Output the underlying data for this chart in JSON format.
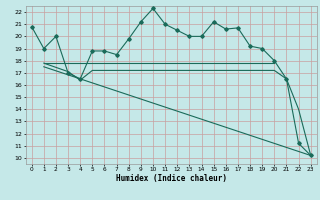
{
  "xlabel": "Humidex (Indice chaleur)",
  "bg_color": "#c5e8e8",
  "grid_color": "#c8a0a0",
  "line_color": "#1a6b5a",
  "xlim": [
    -0.5,
    23.5
  ],
  "ylim": [
    9.5,
    22.5
  ],
  "yticks": [
    10,
    11,
    12,
    13,
    14,
    15,
    16,
    17,
    18,
    19,
    20,
    21,
    22
  ],
  "xticks": [
    0,
    1,
    2,
    3,
    4,
    5,
    6,
    7,
    8,
    9,
    10,
    11,
    12,
    13,
    14,
    15,
    16,
    17,
    18,
    19,
    20,
    21,
    22,
    23
  ],
  "line1_x": [
    0,
    1,
    2,
    3,
    4,
    5,
    6,
    7,
    8,
    9,
    10,
    11,
    12,
    13,
    14,
    15,
    16,
    17,
    18,
    19,
    20,
    21,
    22,
    23
  ],
  "line1_y": [
    20.8,
    19.0,
    20.0,
    17.0,
    16.5,
    18.8,
    18.8,
    18.5,
    19.8,
    21.2,
    22.3,
    21.0,
    20.5,
    20.0,
    20.0,
    21.2,
    20.6,
    20.7,
    19.2,
    19.0,
    18.0,
    16.5,
    11.2,
    10.2
  ],
  "line2_x": [
    1,
    20
  ],
  "line2_y": [
    17.8,
    17.8
  ],
  "line3_x": [
    1,
    23
  ],
  "line3_y": [
    17.5,
    10.2
  ],
  "line4_x": [
    1,
    3,
    4,
    5,
    6,
    20,
    21,
    22,
    23
  ],
  "line4_y": [
    17.8,
    17.1,
    16.4,
    17.2,
    17.2,
    17.2,
    16.5,
    14.0,
    10.2
  ]
}
